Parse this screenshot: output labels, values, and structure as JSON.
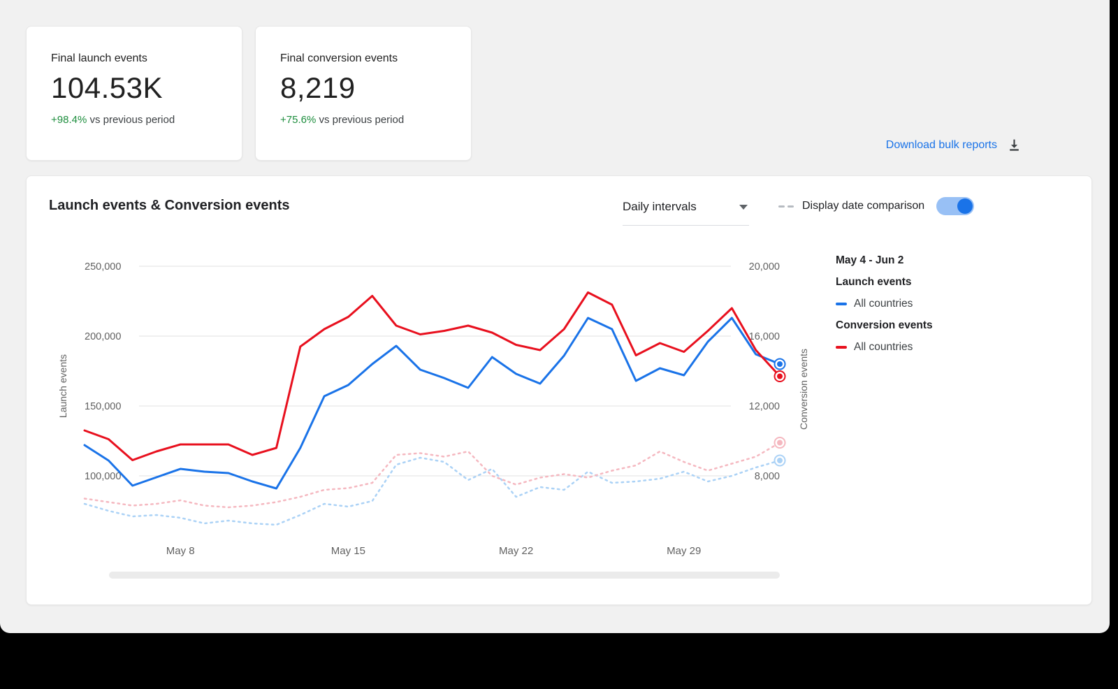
{
  "cards": [
    {
      "title": "Final launch events",
      "value": "104.53K",
      "delta_pct": "+98.4%",
      "delta_suffix": " vs previous period"
    },
    {
      "title": "Final conversion events",
      "value": "8,219",
      "delta_pct": "+75.6%",
      "delta_suffix": " vs previous period"
    }
  ],
  "download": {
    "label": "Download bulk reports"
  },
  "panel": {
    "title": "Launch events & Conversion events",
    "interval_value": "Daily intervals",
    "date_comparison_label": "Display date comparison",
    "toggle_state": "on"
  },
  "legend": {
    "date_range": "May 4 - Jun 2",
    "groups": [
      {
        "title": "Launch events",
        "items": [
          {
            "label": "All countries"
          }
        ]
      },
      {
        "title": "Conversion events",
        "items": [
          {
            "label": "All countries"
          }
        ]
      }
    ]
  },
  "colors": {
    "accent_blue": "#1a73e8",
    "series_red": "#e8101e",
    "prev_launch_blue": "#abd2f6",
    "prev_conversion_pink": "#f5b8c0",
    "positive_green": "#1e8e3e"
  },
  "chart_data": {
    "type": "line",
    "title": "Launch events & Conversion events",
    "interval": "Daily intervals",
    "x_range_label": "May 4 - Jun 2",
    "x_count": 30,
    "x_tick_labels": [
      "May 8",
      "May 15",
      "May 22",
      "May 29"
    ],
    "x_tick_indices": [
      4,
      11,
      18,
      25
    ],
    "grid": true,
    "legend_position": "right",
    "left_axis": {
      "title": "Launch events",
      "tick_labels": [
        "250,000",
        "200,000",
        "150,000",
        "100,000"
      ],
      "tick_values": [
        250000,
        200000,
        150000,
        100000
      ]
    },
    "right_axis": {
      "title": "Conversion events",
      "tick_labels": [
        "20,000",
        "16,000",
        "12,000",
        "8,000"
      ],
      "tick_values": [
        20000,
        16000,
        12000,
        8000
      ]
    },
    "series": [
      {
        "name": "Launch events — All countries",
        "axis": "left",
        "style": "solid",
        "color": "#1a73e8",
        "values": [
          122000,
          111000,
          93000,
          99000,
          105000,
          103000,
          102000,
          96000,
          91000,
          120000,
          157000,
          165000,
          180000,
          193000,
          176000,
          170000,
          163000,
          185000,
          173000,
          166000,
          186000,
          213000,
          205000,
          168000,
          177000,
          172000,
          196000,
          213000,
          187000,
          180000
        ]
      },
      {
        "name": "Conversion events — All countries",
        "axis": "right",
        "style": "solid",
        "color": "#e8101e",
        "values": [
          10600,
          10100,
          8900,
          9400,
          9800,
          9800,
          9800,
          9200,
          9600,
          15400,
          16400,
          17100,
          18300,
          16600,
          16100,
          16300,
          16600,
          16200,
          15500,
          15200,
          16400,
          18500,
          17800,
          14900,
          15600,
          15100,
          16300,
          17600,
          15200,
          13700
        ]
      },
      {
        "name": "Launch events — All countries (previous period)",
        "axis": "left",
        "style": "dashed",
        "color": "#abd2f6",
        "values": [
          80000,
          75000,
          71000,
          72000,
          70000,
          66000,
          68000,
          66000,
          65000,
          72000,
          80000,
          78000,
          82000,
          108000,
          113000,
          110000,
          97000,
          105000,
          85000,
          92000,
          90000,
          103000,
          95000,
          96000,
          98000,
          103000,
          96000,
          100000,
          106000,
          111000
        ]
      },
      {
        "name": "Conversion events — All countries (previous period)",
        "axis": "right",
        "style": "dashed",
        "color": "#f5b8c0",
        "values": [
          6700,
          6500,
          6300,
          6400,
          6600,
          6300,
          6200,
          6300,
          6500,
          6800,
          7200,
          7300,
          7600,
          9200,
          9300,
          9100,
          9400,
          8000,
          7500,
          7900,
          8100,
          7900,
          8300,
          8600,
          9400,
          8800,
          8300,
          8700,
          9100,
          9900
        ]
      }
    ]
  }
}
